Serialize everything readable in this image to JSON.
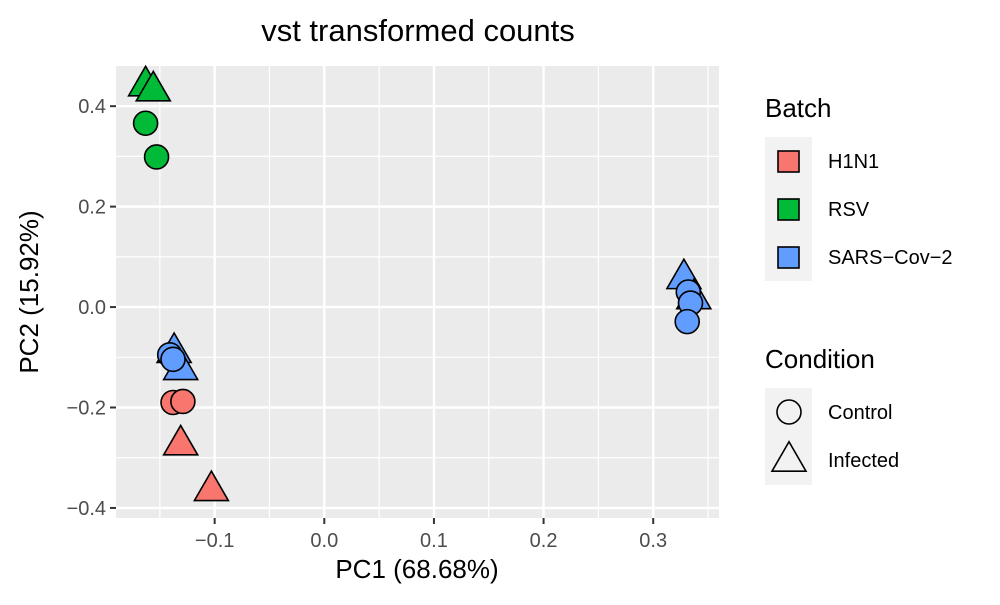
{
  "chart_data": {
    "type": "scatter",
    "title": "vst transformed counts",
    "xlabel": "PC1 (68.68%)",
    "ylabel": "PC2 (15.92%)",
    "xlim": [
      -0.19,
      0.36
    ],
    "ylim": [
      -0.42,
      0.48
    ],
    "xticks": [
      -0.1,
      0.0,
      0.1,
      0.2,
      0.3
    ],
    "xtick_labels": [
      "−0.1",
      "0.0",
      "0.1",
      "0.2",
      "0.3"
    ],
    "yticks": [
      -0.4,
      -0.2,
      0.0,
      0.2,
      0.4
    ],
    "ytick_labels": [
      "−0.4",
      "−0.2",
      "0.0",
      "0.2",
      "0.4"
    ],
    "grid": true,
    "colors": {
      "H1N1": "#F8766D",
      "RSV": "#00BA38",
      "SARS-Cov-2": "#619CFF"
    },
    "legend": {
      "placement": "right",
      "batch_title": "Batch",
      "batch_items": [
        "H1N1",
        "RSV",
        "SARS−Cov−2"
      ],
      "condition_title": "Condition",
      "condition_items": [
        "Control",
        "Infected"
      ]
    },
    "points": [
      {
        "batch": "RSV",
        "condition": "Infected",
        "x": -0.163,
        "y": 0.443
      },
      {
        "batch": "RSV",
        "condition": "Infected",
        "x": -0.156,
        "y": 0.433
      },
      {
        "batch": "RSV",
        "condition": "Control",
        "x": -0.163,
        "y": 0.366
      },
      {
        "batch": "RSV",
        "condition": "Control",
        "x": -0.153,
        "y": 0.299
      },
      {
        "batch": "SARS-Cov-2",
        "condition": "Infected",
        "x": -0.137,
        "y": -0.088
      },
      {
        "batch": "SARS-Cov-2",
        "condition": "Infected",
        "x": -0.131,
        "y": -0.122
      },
      {
        "batch": "SARS-Cov-2",
        "condition": "Control",
        "x": -0.141,
        "y": -0.095
      },
      {
        "batch": "SARS-Cov-2",
        "condition": "Control",
        "x": -0.138,
        "y": -0.104
      },
      {
        "batch": "H1N1",
        "condition": "Control",
        "x": -0.138,
        "y": -0.19
      },
      {
        "batch": "H1N1",
        "condition": "Control",
        "x": -0.129,
        "y": -0.188
      },
      {
        "batch": "H1N1",
        "condition": "Infected",
        "x": -0.131,
        "y": -0.272
      },
      {
        "batch": "H1N1",
        "condition": "Infected",
        "x": -0.103,
        "y": -0.363
      },
      {
        "batch": "SARS-Cov-2",
        "condition": "Infected",
        "x": 0.328,
        "y": 0.059
      },
      {
        "batch": "SARS-Cov-2",
        "condition": "Infected",
        "x": 0.337,
        "y": 0.019
      },
      {
        "batch": "SARS-Cov-2",
        "condition": "Control",
        "x": 0.332,
        "y": 0.03
      },
      {
        "batch": "SARS-Cov-2",
        "condition": "Control",
        "x": 0.334,
        "y": 0.008
      },
      {
        "batch": "SARS-Cov-2",
        "condition": "Control",
        "x": 0.331,
        "y": -0.029
      }
    ]
  }
}
